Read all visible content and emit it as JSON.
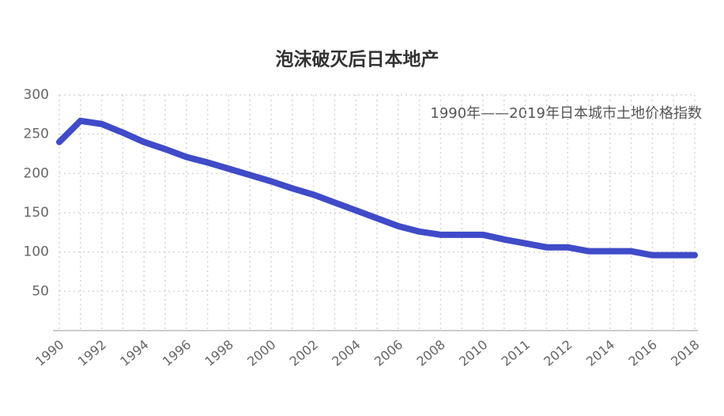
{
  "chart_data": {
    "type": "line",
    "title": "泡沫破灭后日本地产",
    "annotation": "1990年——2019年日本城市土地价格指数",
    "categories": [
      "1990",
      null,
      "1992",
      null,
      "1994",
      null,
      "1996",
      null,
      "1998",
      null,
      "2000",
      null,
      "2002",
      null,
      "2004",
      null,
      "2006",
      null,
      "2008",
      null,
      "2010",
      null,
      "2011",
      null,
      "2012",
      null,
      "2014",
      null,
      "2016",
      null,
      "2018"
    ],
    "series": [
      {
        "color": "#3f4bc8",
        "values": [
          240,
          267,
          263,
          252,
          240,
          231,
          221,
          214,
          206,
          198,
          190,
          181,
          173,
          163,
          153,
          143,
          133,
          126,
          122,
          122,
          122,
          116,
          111,
          106,
          106,
          101,
          101,
          101,
          96,
          96,
          96
        ]
      }
    ],
    "ylim": [
      0,
      300
    ],
    "yticks": [
      50,
      100,
      150,
      200,
      250,
      300
    ],
    "grid": true
  }
}
